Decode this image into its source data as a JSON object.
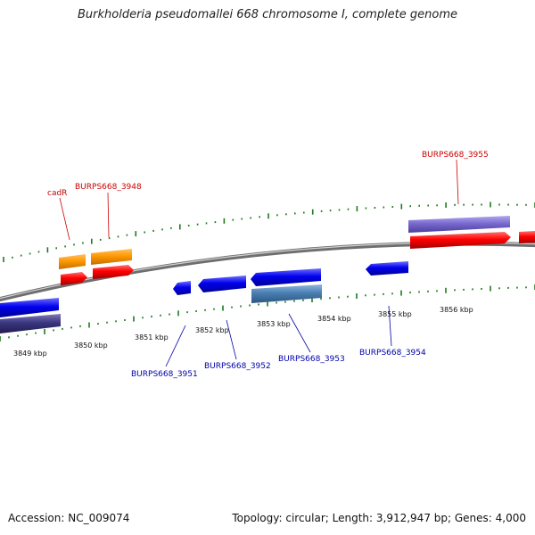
{
  "title": "Burkholderia pseudomallei 668 chromosome I, complete genome",
  "footer": {
    "accession": "Accession: NC_009074",
    "topology": "Topology: circular; Length: 3,912,947 bp; Genes: 4,000"
  },
  "colors": {
    "backbone": "#8a8a8a",
    "tick": "#1e7a1e",
    "forward_label": "#cc0000",
    "reverse_label": "#0000aa",
    "cds_forward": "#ff0000",
    "cds_reverse": "#0000ee",
    "gene_forward_orange": "#ff9900",
    "gene_forward_purple": "#7a6ad0",
    "gene_reverse_steel": "#4a7fb3",
    "gene_reverse_navy": "#3a3680"
  },
  "kbp_labels": [
    "3849 kbp",
    "3850 kbp",
    "3851 kbp",
    "3852 kbp",
    "3853 kbp",
    "3854 kbp",
    "3855 kbp",
    "3856 kbp"
  ],
  "forward_labels": [
    "cadR",
    "BURPS668_3948",
    "BURPS668_3955"
  ],
  "reverse_labels": [
    "BURPS668_3951",
    "BURPS668_3952",
    "BURPS668_3953",
    "BURPS668_3954"
  ]
}
